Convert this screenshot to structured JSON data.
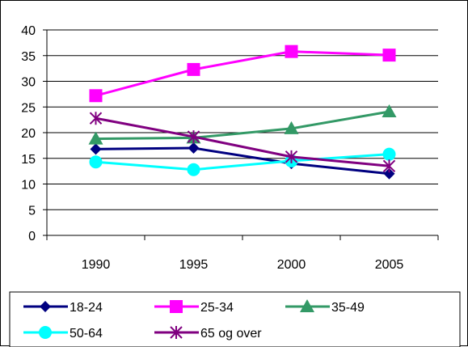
{
  "chart_data": {
    "type": "line",
    "title": "",
    "xlabel": "",
    "ylabel": "",
    "categories": [
      "1990",
      "1995",
      "2000",
      "2005"
    ],
    "ylim": [
      0,
      40
    ],
    "yticks": [
      "0",
      "5",
      "10",
      "15",
      "20",
      "25",
      "30",
      "35",
      "40"
    ],
    "grid": true,
    "legend_position": "bottom",
    "series": [
      {
        "name": "18-24",
        "values": [
          16.8,
          17.0,
          14.0,
          12.0
        ],
        "color": "#000080",
        "marker": "diamond"
      },
      {
        "name": "25-34",
        "values": [
          27.2,
          32.3,
          35.8,
          35.1
        ],
        "color": "#ff00ff",
        "marker": "square"
      },
      {
        "name": "35-49",
        "values": [
          18.8,
          19.0,
          20.8,
          24.1
        ],
        "color": "#339966",
        "marker": "triangle"
      },
      {
        "name": "50-64",
        "values": [
          14.3,
          12.8,
          14.5,
          15.8
        ],
        "color": "#00ffff",
        "marker": "circle"
      },
      {
        "name": "65 og over",
        "values": [
          22.8,
          19.2,
          15.3,
          13.5
        ],
        "color": "#800080",
        "marker": "star"
      }
    ]
  }
}
